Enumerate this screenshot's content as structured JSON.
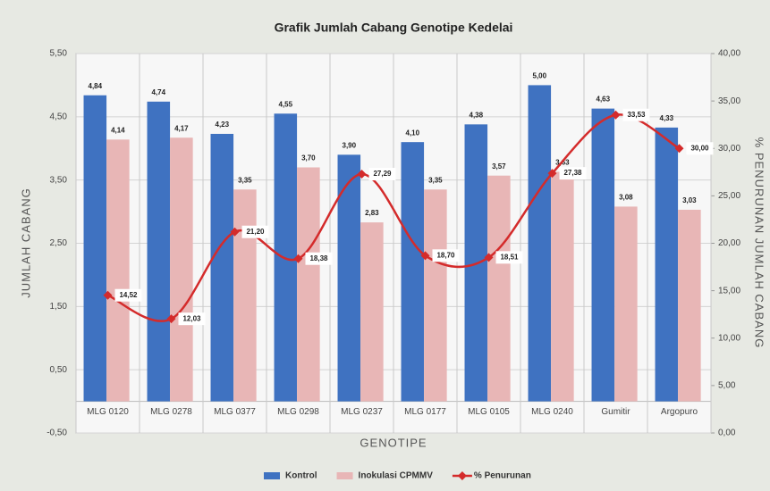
{
  "chart_data": {
    "type": "bar-line",
    "title": "Grafik Jumlah Cabang Genotipe Kedelai",
    "x_label": "GENOTIPE",
    "y_label": "JUMLAH CABANG",
    "y2_label": "% PENURUNAN JUMLAH CABANG",
    "categories": [
      "MLG 0120",
      "MLG 0278",
      "MLG 0377",
      "MLG 0298",
      "MLG 0237",
      "MLG 0177",
      "MLG 0105",
      "MLG 0240",
      "Gumitir",
      "Argopuro"
    ],
    "series": [
      {
        "name": "Kontrol",
        "color": "#3f72c1",
        "kind": "bar",
        "values": [
          4.84,
          4.74,
          4.23,
          4.55,
          3.9,
          4.1,
          4.38,
          5.0,
          4.63,
          4.33
        ],
        "value_labels": [
          "4,84",
          "4,74",
          "4,23",
          "4,55",
          "3,90",
          "4,10",
          "4,38",
          "5,00",
          "4,63",
          "4,33"
        ]
      },
      {
        "name": "Inokulasi CPMMV",
        "color": "#e8b6b6",
        "kind": "bar",
        "values": [
          4.14,
          4.17,
          3.35,
          3.7,
          2.83,
          3.35,
          3.57,
          3.63,
          3.08,
          3.03
        ],
        "value_labels": [
          "4,14",
          "4,17",
          "3,35",
          "3,70",
          "2,83",
          "3,35",
          "3,57",
          "3,63",
          "3,08",
          "3,03"
        ]
      },
      {
        "name": "% Penurunan",
        "color": "#d42b2b",
        "kind": "line",
        "axis": "y2",
        "values": [
          14.52,
          12.03,
          21.2,
          18.38,
          27.29,
          18.7,
          18.51,
          27.38,
          33.53,
          30.0
        ],
        "value_labels": [
          "14,52",
          "12,03",
          "21,20",
          "18,38",
          "27,29",
          "18,70",
          "18,51",
          "27,38",
          "33,53",
          "30,00"
        ]
      }
    ],
    "ylim": [
      -0.5,
      5.5
    ],
    "yticks": [
      {
        "value": -0.5,
        "label": "-0,50"
      },
      {
        "value": 0.5,
        "label": "0,50"
      },
      {
        "value": 1.5,
        "label": "1,50"
      },
      {
        "value": 2.5,
        "label": "2,50"
      },
      {
        "value": 3.5,
        "label": "3,50"
      },
      {
        "value": 4.5,
        "label": "4,50"
      },
      {
        "value": 5.5,
        "label": "5,50"
      }
    ],
    "y2lim": [
      0,
      40
    ],
    "y2ticks": [
      {
        "value": 0,
        "label": "0,00"
      },
      {
        "value": 5,
        "label": "5,00"
      },
      {
        "value": 10,
        "label": "10,00"
      },
      {
        "value": 15,
        "label": "15,00"
      },
      {
        "value": 20,
        "label": "20,00"
      },
      {
        "value": 25,
        "label": "25,00"
      },
      {
        "value": 30,
        "label": "30,00"
      },
      {
        "value": 35,
        "label": "35,00"
      },
      {
        "value": 40,
        "label": "40,00"
      }
    ],
    "legend": "bottom"
  }
}
